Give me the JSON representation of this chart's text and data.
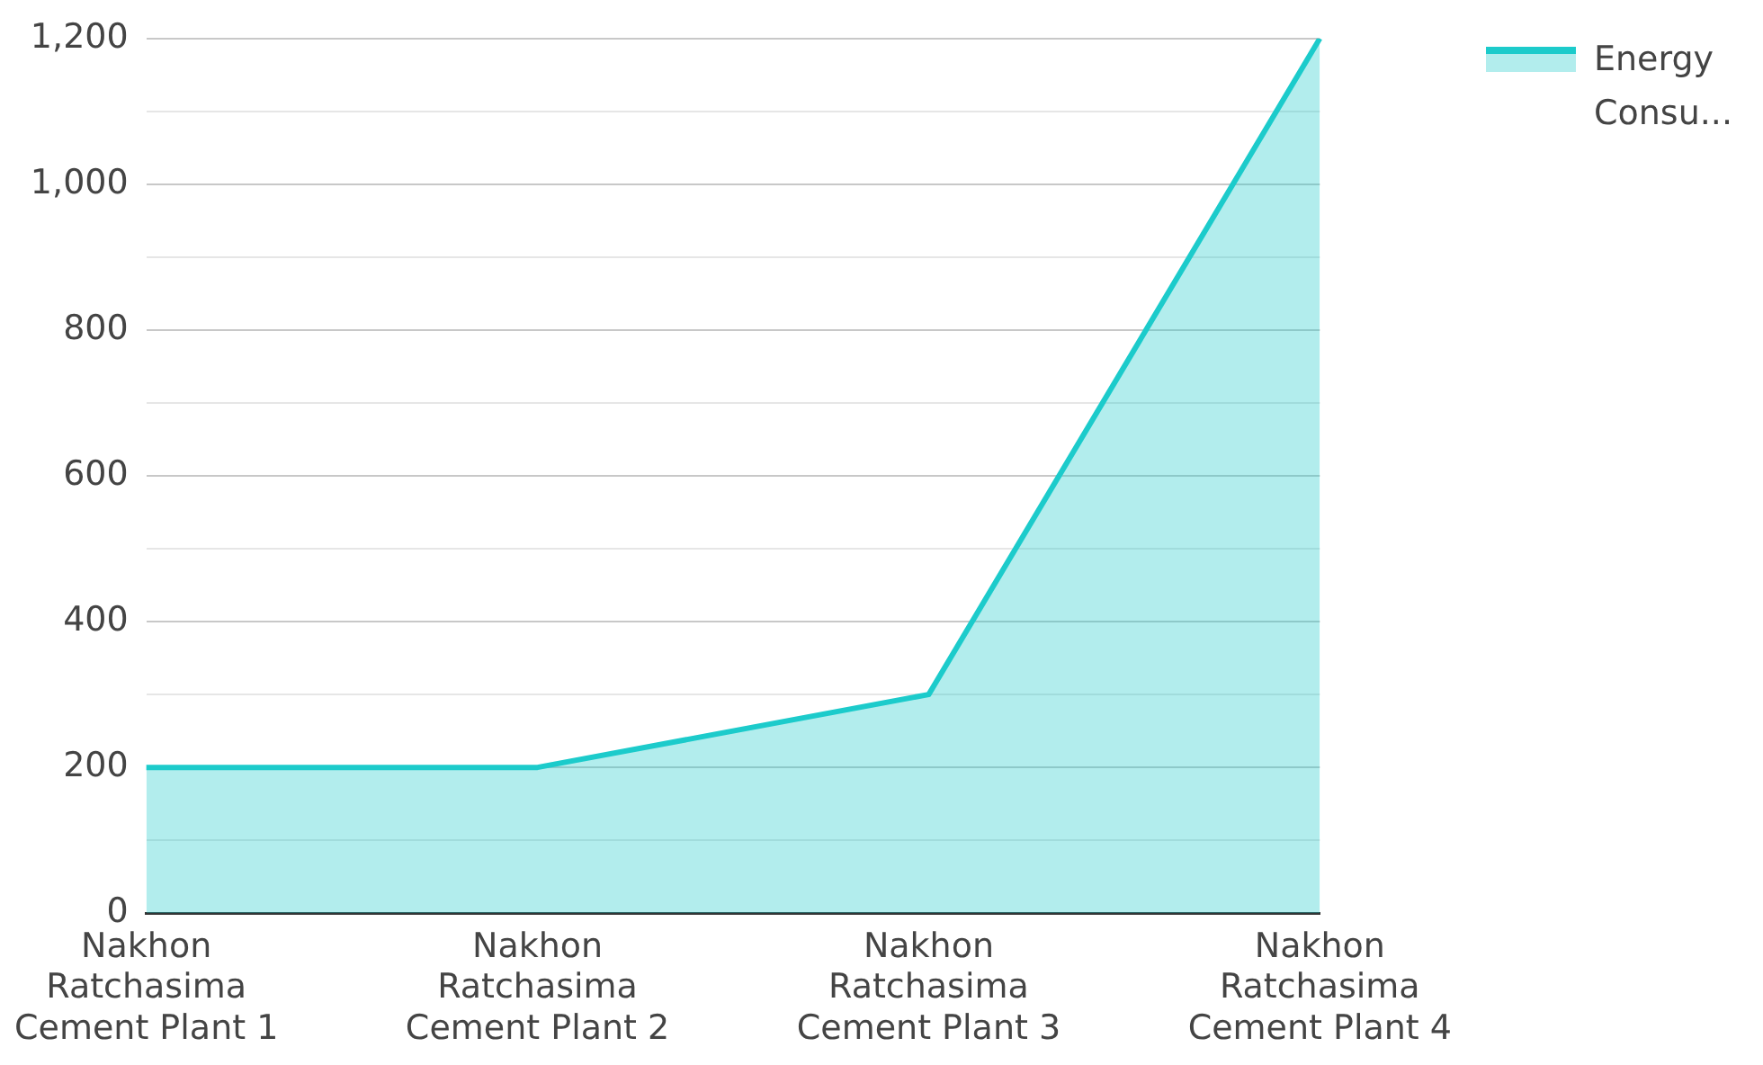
{
  "chart_data": {
    "type": "area",
    "categories": [
      "Nakhon Ratchasima Cement Plant 1",
      "Nakhon Ratchasima Cement Plant 2",
      "Nakhon Ratchasima Cement Plant 3",
      "Nakhon Ratchasima Cement Plant 4"
    ],
    "series": [
      {
        "name": "Energy Consu...",
        "color": "#1ccbcb",
        "values": [
          200,
          200,
          300,
          1200
        ]
      }
    ],
    "ylim": [
      0,
      1200
    ],
    "yticks": [
      {
        "value": 0,
        "label": "0"
      },
      {
        "value": 100,
        "label": null
      },
      {
        "value": 200,
        "label": "200"
      },
      {
        "value": 300,
        "label": null
      },
      {
        "value": 400,
        "label": "400"
      },
      {
        "value": 500,
        "label": null
      },
      {
        "value": 600,
        "label": "600"
      },
      {
        "value": 700,
        "label": null
      },
      {
        "value": 800,
        "label": "800"
      },
      {
        "value": 900,
        "label": null
      },
      {
        "value": 1000,
        "label": "1,000"
      },
      {
        "value": 1100,
        "label": null
      },
      {
        "value": 1200,
        "label": "1,200"
      }
    ],
    "grid": "y",
    "legend": "top right",
    "marker": "none",
    "line_style": "solid"
  }
}
